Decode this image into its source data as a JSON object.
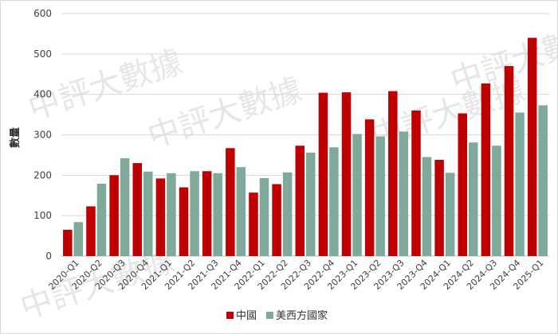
{
  "watermark": "中評大數據",
  "chart_data": {
    "type": "bar",
    "title": "",
    "xlabel": "",
    "ylabel": "數量",
    "ylim": [
      0,
      600
    ],
    "yticks": [
      0,
      100,
      200,
      300,
      400,
      500,
      600
    ],
    "grid": true,
    "legend_position": "bottom",
    "categories": [
      "2020-Q1",
      "2020-Q2",
      "2020-Q3",
      "2020-Q4",
      "2021-Q1",
      "2021-Q2",
      "2021-Q3",
      "2021-Q4",
      "2022-Q1",
      "2022-Q2",
      "2022-Q3",
      "2022-Q4",
      "2023-Q1",
      "2023-Q2",
      "2023-Q3",
      "2023-Q4",
      "2024-Q1",
      "2024-Q2",
      "2024-Q3",
      "2024-Q4",
      "2025-Q1"
    ],
    "series": [
      {
        "name": "中國",
        "color": "#c00000",
        "values": [
          65,
          123,
          200,
          230,
          192,
          170,
          210,
          267,
          157,
          178,
          273,
          404,
          405,
          338,
          408,
          360,
          238,
          353,
          427,
          470,
          540
        ]
      },
      {
        "name": "美西方國家",
        "color": "#7fa99b",
        "values": [
          84,
          179,
          242,
          209,
          205,
          210,
          205,
          220,
          193,
          207,
          256,
          269,
          302,
          296,
          308,
          245,
          206,
          281,
          273,
          355,
          373
        ]
      }
    ]
  }
}
